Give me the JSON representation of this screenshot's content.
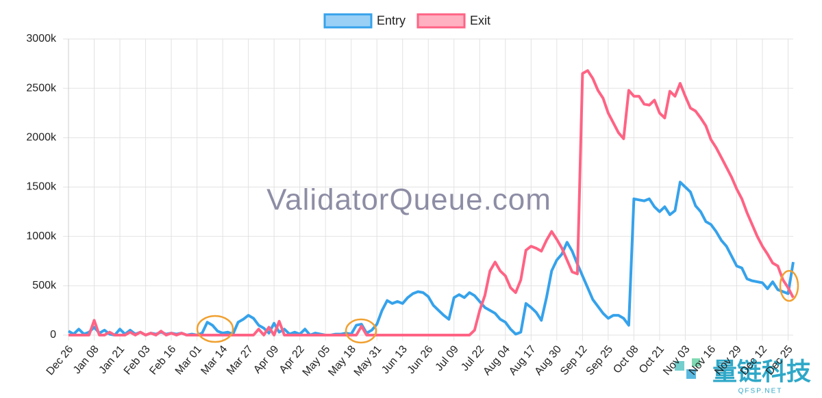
{
  "chart_data": {
    "type": "line",
    "categories": [
      "Dec 26",
      null,
      null,
      null,
      null,
      "Jan 08",
      null,
      null,
      null,
      null,
      "Jan 21",
      null,
      null,
      null,
      null,
      "Feb 03",
      null,
      null,
      null,
      null,
      "Feb 16",
      null,
      null,
      null,
      null,
      "Mar 01",
      null,
      null,
      null,
      null,
      "Mar 14",
      null,
      null,
      null,
      null,
      "Mar 27",
      null,
      null,
      null,
      null,
      "Apr 09",
      null,
      null,
      null,
      null,
      "Apr 22",
      null,
      null,
      null,
      null,
      "May 05",
      null,
      null,
      null,
      null,
      "May 18",
      null,
      null,
      null,
      null,
      "May 31",
      null,
      null,
      null,
      null,
      "Jun 13",
      null,
      null,
      null,
      null,
      "Jun 26",
      null,
      null,
      null,
      null,
      "Jul 09",
      null,
      null,
      null,
      null,
      "Jul 22",
      null,
      null,
      null,
      null,
      "Aug 04",
      null,
      null,
      null,
      null,
      "Aug 17",
      null,
      null,
      null,
      null,
      "Aug 30",
      null,
      null,
      null,
      null,
      "Sep 12",
      null,
      null,
      null,
      null,
      "Sep 25",
      null,
      null,
      null,
      null,
      "Oct 08",
      null,
      null,
      null,
      null,
      "Oct 21",
      null,
      null,
      null,
      null,
      "Nov 03",
      null,
      null,
      null,
      null,
      "Nov 16",
      null,
      null,
      null,
      null,
      "Nov 29",
      null,
      null,
      null,
      null,
      "Dec 12",
      null,
      null,
      null,
      null,
      "Dec 25",
      null
    ],
    "series": [
      {
        "name": "Entry",
        "color": "#36a2eb",
        "fill": "#9ad0f5",
        "values": [
          40000,
          10000,
          60000,
          10000,
          30000,
          80000,
          20000,
          50000,
          10000,
          0,
          60000,
          10000,
          50000,
          10000,
          30000,
          0,
          20000,
          10000,
          30000,
          10000,
          20000,
          10000,
          20000,
          0,
          10000,
          0,
          20000,
          130000,
          100000,
          40000,
          20000,
          30000,
          10000,
          130000,
          160000,
          200000,
          170000,
          100000,
          70000,
          20000,
          120000,
          30000,
          60000,
          10000,
          30000,
          10000,
          60000,
          0,
          20000,
          10000,
          0,
          0,
          10000,
          10000,
          20000,
          10000,
          100000,
          110000,
          20000,
          50000,
          110000,
          250000,
          350000,
          320000,
          340000,
          320000,
          380000,
          420000,
          440000,
          430000,
          390000,
          300000,
          250000,
          200000,
          160000,
          380000,
          410000,
          380000,
          430000,
          400000,
          340000,
          280000,
          250000,
          220000,
          160000,
          130000,
          60000,
          10000,
          30000,
          320000,
          280000,
          230000,
          150000,
          380000,
          650000,
          760000,
          820000,
          940000,
          850000,
          720000,
          600000,
          480000,
          360000,
          290000,
          220000,
          170000,
          200000,
          200000,
          170000,
          100000,
          1380000,
          1370000,
          1360000,
          1380000,
          1300000,
          1250000,
          1300000,
          1220000,
          1260000,
          1550000,
          1500000,
          1450000,
          1310000,
          1250000,
          1150000,
          1120000,
          1050000,
          960000,
          900000,
          800000,
          700000,
          680000,
          570000,
          550000,
          540000,
          530000,
          470000,
          540000,
          460000,
          440000,
          420000,
          740000
        ]
      },
      {
        "name": "Exit",
        "color": "#ff6384",
        "fill": "#ffb1c1",
        "values": [
          0,
          0,
          0,
          0,
          0,
          150000,
          0,
          0,
          30000,
          0,
          0,
          0,
          30000,
          0,
          30000,
          0,
          20000,
          0,
          40000,
          0,
          20000,
          0,
          20000,
          0,
          0,
          0,
          0,
          0,
          0,
          0,
          0,
          0,
          0,
          0,
          0,
          0,
          0,
          60000,
          0,
          80000,
          0,
          140000,
          0,
          0,
          0,
          0,
          0,
          0,
          0,
          0,
          0,
          0,
          0,
          0,
          0,
          0,
          0,
          90000,
          0,
          0,
          0,
          0,
          0,
          0,
          0,
          0,
          0,
          0,
          0,
          0,
          0,
          0,
          0,
          0,
          0,
          0,
          0,
          0,
          0,
          50000,
          250000,
          400000,
          650000,
          740000,
          650000,
          600000,
          480000,
          430000,
          560000,
          860000,
          900000,
          880000,
          850000,
          960000,
          1050000,
          970000,
          880000,
          760000,
          640000,
          620000,
          2650000,
          2680000,
          2600000,
          2480000,
          2400000,
          2250000,
          2150000,
          2050000,
          1990000,
          2480000,
          2420000,
          2420000,
          2340000,
          2330000,
          2380000,
          2250000,
          2200000,
          2470000,
          2420000,
          2550000,
          2420000,
          2300000,
          2270000,
          2200000,
          2120000,
          1980000,
          1900000,
          1800000,
          1700000,
          1600000,
          1480000,
          1380000,
          1240000,
          1120000,
          1000000,
          900000,
          820000,
          730000,
          700000,
          560000,
          480000,
          380000
        ]
      }
    ],
    "ylim": [
      0,
      3000000
    ],
    "yticks": [
      0,
      {
        "value": 500000,
        "label": "500k"
      },
      {
        "value": 1000000,
        "label": "1000k"
      },
      {
        "value": 1500000,
        "label": "1500k"
      },
      {
        "value": 2000000,
        "label": "2000k"
      },
      {
        "value": 2500000,
        "label": "2500k"
      },
      {
        "value": 3000000,
        "label": "3000k"
      }
    ],
    "grid": true,
    "legend": "top",
    "watermark": "ValidatorQueue.com",
    "logo": {
      "name": "量链科技",
      "site": "QFSP.NET"
    }
  }
}
